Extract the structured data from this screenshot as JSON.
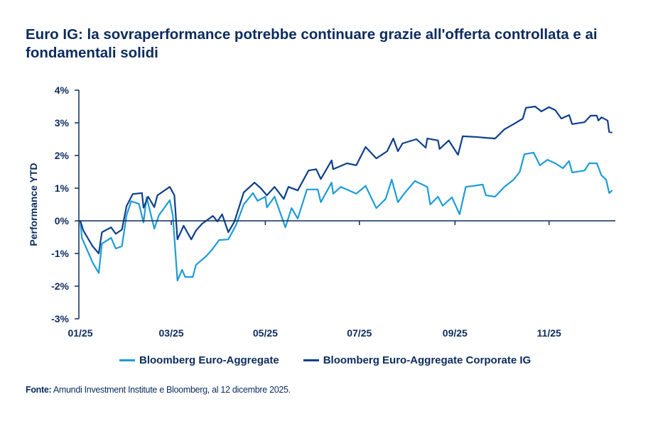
{
  "chart_data": {
    "type": "line",
    "title": "Euro IG: la sovraperformance potrebbe continuare grazie all'offerta controllata e ai fondamentali solidi",
    "xlabel": "",
    "ylabel": "Performance YTD",
    "ylim": [
      -3,
      4
    ],
    "yticks": [
      "4%",
      "3%",
      "2%",
      "1%",
      "0%",
      "-1%",
      "-2%",
      "-3%"
    ],
    "ytick_values": [
      4,
      3,
      2,
      1,
      0,
      -1,
      -2,
      -3
    ],
    "xticks": [
      "01/25",
      "03/25",
      "05/25",
      "07/25",
      "09/25",
      "11/25"
    ],
    "xtick_dates": [
      "2025-01-01",
      "2025-03-01",
      "2025-05-01",
      "2025-07-01",
      "2025-09-01",
      "2025-11-01"
    ],
    "xlim": [
      "2025-01-01",
      "2025-12-12"
    ],
    "grid": false,
    "legend": "bottom",
    "series": [
      {
        "name": "Bloomberg Euro-Aggregate",
        "color": "#1e9bd7",
        "points": [
          [
            "2025-01-01",
            0
          ],
          [
            "2025-01-02",
            -0.52
          ],
          [
            "2025-01-09",
            -1.28
          ],
          [
            "2025-01-13",
            -1.6
          ],
          [
            "2025-01-15",
            -0.7
          ],
          [
            "2025-01-21",
            -0.52
          ],
          [
            "2025-01-24",
            -0.85
          ],
          [
            "2025-01-28",
            -0.78
          ],
          [
            "2025-01-31",
            0.17
          ],
          [
            "2025-02-03",
            0.6
          ],
          [
            "2025-02-08",
            0.52
          ],
          [
            "2025-02-11",
            -0.05
          ],
          [
            "2025-02-13",
            0.72
          ],
          [
            "2025-02-18",
            -0.24
          ],
          [
            "2025-02-21",
            0.17
          ],
          [
            "2025-02-28",
            0.63
          ],
          [
            "2025-03-02",
            0.17
          ],
          [
            "2025-03-05",
            -1.83
          ],
          [
            "2025-03-08",
            -1.5
          ],
          [
            "2025-03-10",
            -1.72
          ],
          [
            "2025-03-15",
            -1.72
          ],
          [
            "2025-03-17",
            -1.35
          ],
          [
            "2025-03-24",
            -1.07
          ],
          [
            "2025-03-28",
            -0.85
          ],
          [
            "2025-04-01",
            -0.59
          ],
          [
            "2025-04-07",
            -0.57
          ],
          [
            "2025-04-12",
            -0.13
          ],
          [
            "2025-04-17",
            0.5
          ],
          [
            "2025-04-23",
            0.85
          ],
          [
            "2025-04-26",
            0.61
          ],
          [
            "2025-05-01",
            0.74
          ],
          [
            "2025-05-02",
            0.41
          ],
          [
            "2025-05-07",
            0.74
          ],
          [
            "2025-05-14",
            -0.2
          ],
          [
            "2025-05-18",
            0.39
          ],
          [
            "2025-05-22",
            0.07
          ],
          [
            "2025-05-28",
            0.96
          ],
          [
            "2025-06-04",
            0.96
          ],
          [
            "2025-06-06",
            0.57
          ],
          [
            "2025-06-13",
            1.17
          ],
          [
            "2025-06-14",
            0.83
          ],
          [
            "2025-06-19",
            1.04
          ],
          [
            "2025-06-29",
            0.83
          ],
          [
            "2025-07-05",
            1.07
          ],
          [
            "2025-07-12",
            0.39
          ],
          [
            "2025-07-18",
            0.67
          ],
          [
            "2025-07-22",
            1.26
          ],
          [
            "2025-07-26",
            0.57
          ],
          [
            "2025-07-30",
            0.83
          ],
          [
            "2025-08-06",
            1.22
          ],
          [
            "2025-08-14",
            1.04
          ],
          [
            "2025-08-16",
            0.5
          ],
          [
            "2025-08-21",
            0.74
          ],
          [
            "2025-08-24",
            0.46
          ],
          [
            "2025-08-30",
            0.72
          ],
          [
            "2025-09-04",
            0.2
          ],
          [
            "2025-09-08",
            1.04
          ],
          [
            "2025-09-13",
            1.07
          ],
          [
            "2025-09-19",
            1.11
          ],
          [
            "2025-09-21",
            0.78
          ],
          [
            "2025-09-27",
            0.74
          ],
          [
            "2025-10-03",
            1.04
          ],
          [
            "2025-10-09",
            1.26
          ],
          [
            "2025-10-13",
            1.5
          ],
          [
            "2025-10-16",
            2.04
          ],
          [
            "2025-10-22",
            2.09
          ],
          [
            "2025-10-26",
            1.7
          ],
          [
            "2025-10-31",
            1.87
          ],
          [
            "2025-11-05",
            1.76
          ],
          [
            "2025-11-10",
            1.61
          ],
          [
            "2025-11-14",
            1.83
          ],
          [
            "2025-11-16",
            1.48
          ],
          [
            "2025-11-24",
            1.54
          ],
          [
            "2025-11-27",
            1.76
          ],
          [
            "2025-12-02",
            1.76
          ],
          [
            "2025-12-05",
            1.39
          ],
          [
            "2025-12-08",
            1.26
          ],
          [
            "2025-12-10",
            0.85
          ],
          [
            "2025-12-12",
            0.93
          ]
        ]
      },
      {
        "name": "Bloomberg Euro-Aggregate Corporate IG",
        "color": "#0d3f8a",
        "points": [
          [
            "2025-01-01",
            0
          ],
          [
            "2025-01-03",
            -0.3
          ],
          [
            "2025-01-09",
            -0.78
          ],
          [
            "2025-01-13",
            -1.0
          ],
          [
            "2025-01-15",
            -0.35
          ],
          [
            "2025-01-21",
            -0.2
          ],
          [
            "2025-01-24",
            -0.4
          ],
          [
            "2025-01-28",
            -0.27
          ],
          [
            "2025-01-31",
            0.45
          ],
          [
            "2025-02-04",
            0.82
          ],
          [
            "2025-02-10",
            0.85
          ],
          [
            "2025-02-11",
            0.4
          ],
          [
            "2025-02-14",
            0.74
          ],
          [
            "2025-02-18",
            0.42
          ],
          [
            "2025-02-20",
            0.78
          ],
          [
            "2025-02-28",
            1.04
          ],
          [
            "2025-03-03",
            0.78
          ],
          [
            "2025-03-05",
            -0.57
          ],
          [
            "2025-03-09",
            -0.15
          ],
          [
            "2025-03-14",
            -0.57
          ],
          [
            "2025-03-17",
            -0.3
          ],
          [
            "2025-03-21",
            -0.09
          ],
          [
            "2025-03-28",
            0.15
          ],
          [
            "2025-03-31",
            -0.02
          ],
          [
            "2025-04-03",
            0.2
          ],
          [
            "2025-04-07",
            -0.35
          ],
          [
            "2025-04-11",
            -0.02
          ],
          [
            "2025-04-17",
            0.87
          ],
          [
            "2025-04-24",
            1.17
          ],
          [
            "2025-04-28",
            1.0
          ],
          [
            "2025-05-02",
            0.78
          ],
          [
            "2025-05-07",
            1.04
          ],
          [
            "2025-05-13",
            0.67
          ],
          [
            "2025-05-16",
            1.04
          ],
          [
            "2025-05-22",
            0.93
          ],
          [
            "2025-05-29",
            1.54
          ],
          [
            "2025-06-03",
            1.58
          ],
          [
            "2025-06-06",
            1.28
          ],
          [
            "2025-06-13",
            1.85
          ],
          [
            "2025-06-14",
            1.58
          ],
          [
            "2025-06-23",
            1.76
          ],
          [
            "2025-06-29",
            1.7
          ],
          [
            "2025-07-05",
            2.26
          ],
          [
            "2025-07-12",
            1.91
          ],
          [
            "2025-07-19",
            2.13
          ],
          [
            "2025-07-23",
            2.52
          ],
          [
            "2025-07-26",
            2.13
          ],
          [
            "2025-07-29",
            2.37
          ],
          [
            "2025-08-07",
            2.5
          ],
          [
            "2025-08-13",
            2.24
          ],
          [
            "2025-08-14",
            2.52
          ],
          [
            "2025-08-21",
            2.46
          ],
          [
            "2025-08-22",
            2.2
          ],
          [
            "2025-08-28",
            2.46
          ],
          [
            "2025-09-03",
            2.02
          ],
          [
            "2025-09-06",
            2.59
          ],
          [
            "2025-09-14",
            2.57
          ],
          [
            "2025-09-27",
            2.52
          ],
          [
            "2025-10-03",
            2.8
          ],
          [
            "2025-10-09",
            2.96
          ],
          [
            "2025-10-15",
            3.13
          ],
          [
            "2025-10-17",
            3.46
          ],
          [
            "2025-10-23",
            3.5
          ],
          [
            "2025-10-27",
            3.35
          ],
          [
            "2025-11-01",
            3.48
          ],
          [
            "2025-11-05",
            3.39
          ],
          [
            "2025-11-09",
            3.13
          ],
          [
            "2025-11-14",
            3.24
          ],
          [
            "2025-11-16",
            2.96
          ],
          [
            "2025-11-24",
            3.02
          ],
          [
            "2025-11-28",
            3.22
          ],
          [
            "2025-12-02",
            3.22
          ],
          [
            "2025-12-03",
            3.07
          ],
          [
            "2025-12-05",
            3.17
          ],
          [
            "2025-12-09",
            3.07
          ],
          [
            "2025-12-10",
            2.72
          ],
          [
            "2025-12-12",
            2.7
          ]
        ]
      }
    ]
  },
  "source": {
    "label": "Fonte:",
    "text": " Amundi Investment Institute e Bloomberg, al 12 dicembre 2025."
  }
}
